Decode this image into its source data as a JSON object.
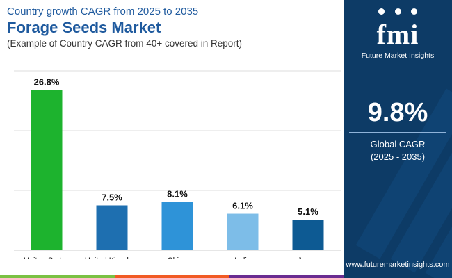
{
  "header": {
    "subtitle_top": "Country growth CAGR from 2025 to 2035",
    "title": "Forage Seeds Market",
    "subtitle_bottom": "(Example of Country CAGR from 40+ covered in Report)"
  },
  "chart_data": {
    "type": "bar",
    "categories": [
      "United States",
      "United Kingdom",
      "China",
      "India",
      "Japan"
    ],
    "values": [
      26.8,
      7.5,
      8.1,
      6.1,
      5.1
    ],
    "value_labels": [
      "26.8%",
      "7.5%",
      "8.1%",
      "6.1%",
      "5.1%"
    ],
    "colors": [
      "#1db32e",
      "#1e6fb0",
      "#2e93d8",
      "#7dbde8",
      "#0d5a93"
    ],
    "ylim": [
      0,
      30
    ],
    "grid": true
  },
  "side_panel": {
    "logo_mark": "fmi",
    "logo_text": "Future Market Insights",
    "metric_value": "9.8%",
    "metric_label": "Global CAGR",
    "metric_period": "(2025 - 2035)",
    "website": "www.futuremarketinsights.com",
    "background": "#0d3b66"
  },
  "bottom_bar_colors": [
    "#7ac143",
    "#f15a24",
    "#6a2c91"
  ]
}
